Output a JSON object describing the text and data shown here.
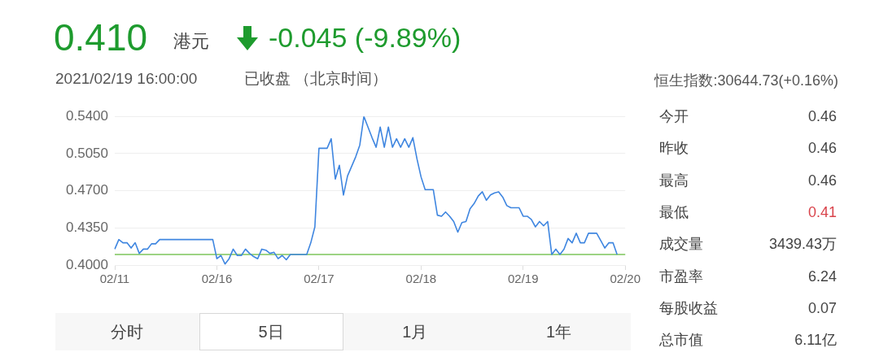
{
  "chart_data": {
    "type": "line",
    "title": "0.410",
    "annotations": [
      "港元",
      "-0.045 (-9.89%)",
      "2021/02/19 16:00:00",
      "已收盘 （北京时间）",
      "恒生指数:30644.73(+0.16%)",
      "今开",
      "0.46",
      "昨收",
      "0.46",
      "最高",
      "0.46",
      "最低",
      "0.41",
      "成交量",
      "3439.43万",
      "市盈率",
      "6.24",
      "每股收益",
      "0.07",
      "总市值",
      "6.11亿",
      "分时",
      "5日",
      "1月",
      "1年"
    ],
    "series": [
      {
        "color": "#3f86e0",
        "values": [
          0.415,
          0.424,
          0.421,
          0.421,
          0.416,
          0.421,
          0.411,
          0.415,
          0.415,
          0.42,
          0.42,
          0.424,
          0.424,
          0.424,
          0.424,
          0.424,
          0.424,
          0.424,
          0.424,
          0.424,
          0.424,
          0.424,
          0.424,
          0.424,
          0.424,
          0.406,
          0.409,
          0.401,
          0.406,
          0.415,
          0.409,
          0.409,
          0.415,
          0.411,
          0.408,
          0.406,
          0.415,
          0.414,
          0.411,
          0.412,
          0.406,
          0.409,
          0.405,
          0.41,
          0.41,
          0.41,
          0.41,
          0.41,
          0.421,
          0.436,
          0.51,
          0.51,
          0.51,
          0.519,
          0.481,
          0.494,
          0.466,
          0.484,
          0.493,
          0.502,
          0.513,
          0.54,
          0.53,
          0.52,
          0.511,
          0.53,
          0.511,
          0.53,
          0.511,
          0.519,
          0.511,
          0.519,
          0.511,
          0.52,
          0.5,
          0.483,
          0.471,
          0.471,
          0.471,
          0.447,
          0.446,
          0.45,
          0.446,
          0.441,
          0.431,
          0.44,
          0.441,
          0.453,
          0.458,
          0.465,
          0.469,
          0.461,
          0.466,
          0.468,
          0.469,
          0.464,
          0.456,
          0.454,
          0.454,
          0.454,
          0.446,
          0.446,
          0.443,
          0.436,
          0.441,
          0.437,
          0.441,
          0.41,
          0.415,
          0.41,
          0.415,
          0.425,
          0.421,
          0.43,
          0.421,
          0.421,
          0.43,
          0.43,
          0.43,
          0.423,
          0.416,
          0.421,
          0.421,
          0.41,
          null,
          null
        ]
      }
    ],
    "categories": [
      "02/11",
      null,
      null,
      null,
      null,
      null,
      null,
      null,
      null,
      null,
      null,
      null,
      null,
      null,
      null,
      null,
      null,
      null,
      null,
      null,
      null,
      null,
      null,
      null,
      null,
      "02/16",
      null,
      null,
      null,
      null,
      null,
      null,
      null,
      null,
      null,
      null,
      null,
      null,
      null,
      null,
      null,
      null,
      null,
      null,
      null,
      null,
      null,
      null,
      null,
      null,
      "02/17",
      null,
      null,
      null,
      null,
      null,
      null,
      null,
      null,
      null,
      null,
      null,
      null,
      null,
      null,
      null,
      null,
      null,
      null,
      null,
      null,
      null,
      null,
      null,
      null,
      "02/18",
      null,
      null,
      null,
      null,
      null,
      null,
      null,
      null,
      null,
      null,
      null,
      null,
      null,
      null,
      null,
      null,
      null,
      null,
      null,
      null,
      null,
      null,
      null,
      null,
      "02/19",
      null,
      null,
      null,
      null,
      null,
      null,
      null,
      null,
      null,
      null,
      null,
      null,
      null,
      null,
      null,
      null,
      null,
      null,
      null,
      null,
      null,
      null,
      null,
      null,
      "02/20"
    ],
    "ylim": [
      0.4,
      0.54
    ],
    "yticks": [
      {
        "value": 0.4,
        "label": "0.4000"
      },
      {
        "value": 0.435,
        "label": "0.4350"
      },
      {
        "value": 0.47,
        "label": "0.4700"
      },
      {
        "value": 0.505,
        "label": "0.5050"
      },
      {
        "value": 0.54,
        "label": "0.5400"
      }
    ],
    "ref_lines": [
      {
        "axis": "y",
        "value": 0.41,
        "color": "#7cc45a"
      }
    ],
    "grid": "y",
    "legend": false,
    "marker": "none",
    "line_style": "solid"
  }
}
